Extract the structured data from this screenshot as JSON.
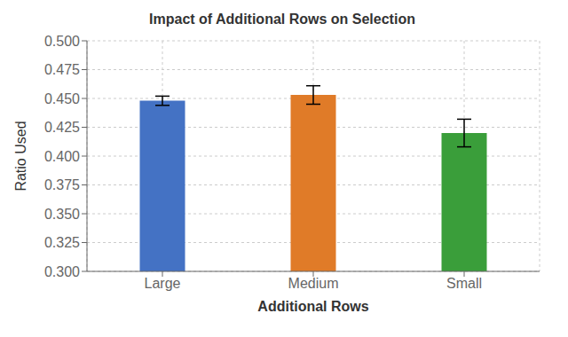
{
  "chart_data": {
    "type": "bar",
    "title": "Impact of Additional Rows on Selection",
    "xlabel": "Additional Rows",
    "ylabel": "Ratio Used",
    "categories": [
      "Large",
      "Medium",
      "Small"
    ],
    "values": [
      0.448,
      0.453,
      0.42
    ],
    "errors": [
      0.004,
      0.008,
      0.012
    ],
    "colors": [
      "#4472c4",
      "#e07b28",
      "#3a9e3a"
    ],
    "ylim": [
      0.3,
      0.5
    ],
    "yticks": [
      {
        "value": 0.3,
        "label": "0.300"
      },
      0.325,
      {
        "value": 0.35,
        "label": "0.350"
      },
      0.375,
      {
        "value": 0.4,
        "label": "0.400"
      },
      0.425,
      {
        "value": 0.45,
        "label": "0.450"
      },
      0.475,
      {
        "value": 0.5,
        "label": "0.500"
      }
    ],
    "grid": true
  }
}
